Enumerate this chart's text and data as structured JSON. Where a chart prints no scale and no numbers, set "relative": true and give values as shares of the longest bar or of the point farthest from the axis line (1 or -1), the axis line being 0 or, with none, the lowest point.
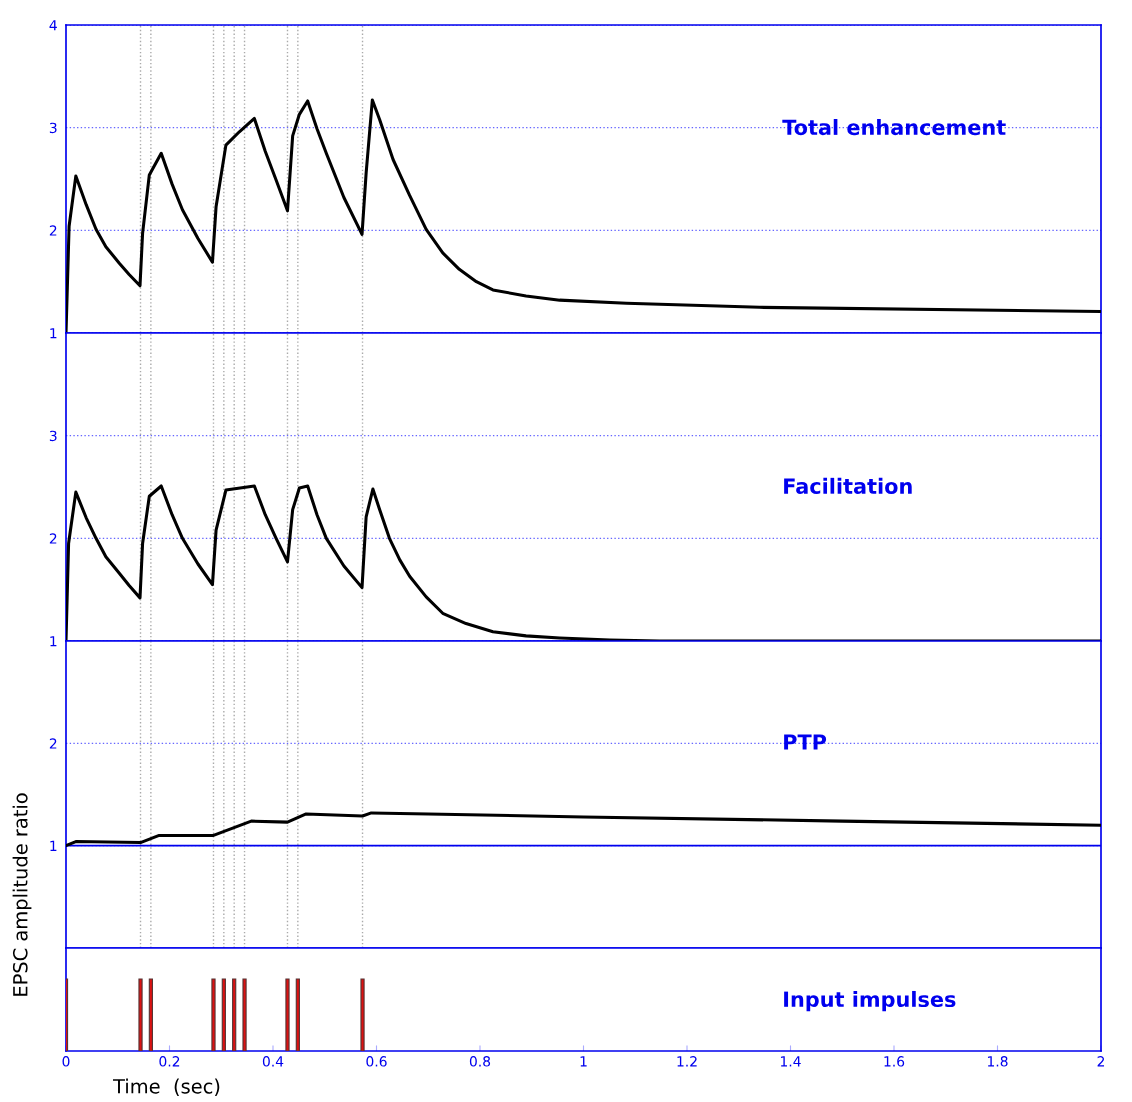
{
  "chart_data": [
    {
      "type": "line",
      "title": "Total enhancement",
      "xlim": [
        0,
        2
      ],
      "ylim": [
        1,
        4
      ],
      "yticks": [
        1,
        2,
        3,
        4
      ],
      "tick_labels": "y",
      "grid": "y",
      "marker": "none",
      "line_style": "solid",
      "series": [
        {
          "color": "#000000",
          "x": [
            0,
            0.006,
            0.019,
            0.039,
            0.058,
            0.077,
            0.103,
            0.122,
            0.143,
            0.148,
            0.161,
            0.184,
            0.205,
            0.225,
            0.255,
            0.283,
            0.29,
            0.309,
            0.335,
            0.364,
            0.385,
            0.406,
            0.428,
            0.438,
            0.451,
            0.467,
            0.485,
            0.503,
            0.537,
            0.572,
            0.58,
            0.592,
            0.606,
            0.632,
            0.664,
            0.696,
            0.728,
            0.76,
            0.793,
            0.825,
            0.889,
            0.954,
            1.083,
            1.34,
            2.0
          ],
          "values": [
            1.0,
            2.04,
            2.53,
            2.25,
            2.01,
            1.84,
            1.68,
            1.57,
            1.46,
            1.97,
            2.54,
            2.75,
            2.45,
            2.2,
            1.92,
            1.69,
            2.23,
            2.83,
            2.96,
            3.09,
            2.77,
            2.49,
            2.19,
            2.92,
            3.13,
            3.26,
            2.99,
            2.75,
            2.32,
            1.96,
            2.56,
            3.27,
            3.08,
            2.69,
            2.34,
            2.01,
            1.78,
            1.62,
            1.5,
            1.42,
            1.36,
            1.32,
            1.29,
            1.25,
            1.21
          ]
        }
      ],
      "ref_lines": [
        {
          "axis": "x",
          "value": 0.144,
          "color": "#aaaaaa",
          "line_style": "dotted"
        },
        {
          "axis": "x",
          "value": 0.164,
          "color": "#aaaaaa",
          "line_style": "dotted"
        },
        {
          "axis": "x",
          "value": 0.285,
          "color": "#aaaaaa",
          "line_style": "dotted"
        },
        {
          "axis": "x",
          "value": 0.305,
          "color": "#aaaaaa",
          "line_style": "dotted"
        },
        {
          "axis": "x",
          "value": 0.325,
          "color": "#aaaaaa",
          "line_style": "dotted"
        },
        {
          "axis": "x",
          "value": 0.345,
          "color": "#aaaaaa",
          "line_style": "dotted"
        },
        {
          "axis": "x",
          "value": 0.428,
          "color": "#aaaaaa",
          "line_style": "dotted"
        },
        {
          "axis": "x",
          "value": 0.448,
          "color": "#aaaaaa",
          "line_style": "dotted"
        },
        {
          "axis": "x",
          "value": 0.573,
          "color": "#aaaaaa",
          "line_style": "dotted"
        }
      ]
    },
    {
      "type": "line",
      "title": "Facilitation",
      "xlim": [
        0,
        2
      ],
      "ylim": [
        1,
        4
      ],
      "yticks": [
        1,
        2,
        3
      ],
      "tick_labels": "y",
      "grid": "y",
      "marker": "none",
      "line_style": "solid",
      "series": [
        {
          "color": "#000000",
          "x": [
            0,
            0.005,
            0.019,
            0.039,
            0.058,
            0.077,
            0.103,
            0.122,
            0.143,
            0.148,
            0.161,
            0.184,
            0.205,
            0.225,
            0.255,
            0.283,
            0.29,
            0.309,
            0.364,
            0.385,
            0.406,
            0.428,
            0.438,
            0.451,
            0.467,
            0.485,
            0.503,
            0.537,
            0.572,
            0.58,
            0.593,
            0.606,
            0.625,
            0.645,
            0.664,
            0.696,
            0.728,
            0.773,
            0.825,
            0.889,
            0.954,
            1.051,
            1.147,
            2.0
          ],
          "values": [
            1.0,
            1.95,
            2.45,
            2.2,
            2.0,
            1.82,
            1.66,
            1.54,
            1.42,
            1.95,
            2.41,
            2.51,
            2.23,
            2.0,
            1.75,
            1.55,
            2.08,
            2.47,
            2.51,
            2.23,
            2.0,
            1.77,
            2.28,
            2.49,
            2.51,
            2.23,
            2.0,
            1.73,
            1.52,
            2.21,
            2.48,
            2.28,
            2.0,
            1.79,
            1.63,
            1.43,
            1.27,
            1.17,
            1.09,
            1.05,
            1.03,
            1.01,
            1.0,
            1.0
          ]
        }
      ],
      "ref_lines": [
        {
          "axis": "x",
          "value": 0.144,
          "color": "#aaaaaa",
          "line_style": "dotted"
        },
        {
          "axis": "x",
          "value": 0.164,
          "color": "#aaaaaa",
          "line_style": "dotted"
        },
        {
          "axis": "x",
          "value": 0.285,
          "color": "#aaaaaa",
          "line_style": "dotted"
        },
        {
          "axis": "x",
          "value": 0.305,
          "color": "#aaaaaa",
          "line_style": "dotted"
        },
        {
          "axis": "x",
          "value": 0.325,
          "color": "#aaaaaa",
          "line_style": "dotted"
        },
        {
          "axis": "x",
          "value": 0.345,
          "color": "#aaaaaa",
          "line_style": "dotted"
        },
        {
          "axis": "x",
          "value": 0.428,
          "color": "#aaaaaa",
          "line_style": "dotted"
        },
        {
          "axis": "x",
          "value": 0.448,
          "color": "#aaaaaa",
          "line_style": "dotted"
        },
        {
          "axis": "x",
          "value": 0.573,
          "color": "#aaaaaa",
          "line_style": "dotted"
        }
      ]
    },
    {
      "type": "line",
      "title": "PTP",
      "ylabel": "EPSC amplitude ratio",
      "xlim": [
        0,
        2
      ],
      "ylim": [
        0,
        3
      ],
      "yticks": [
        1,
        2
      ],
      "tick_labels": "y",
      "grid": "y",
      "marker": "none",
      "line_style": "solid",
      "series": [
        {
          "color": "#000000",
          "x": [
            0,
            0.019,
            0.144,
            0.18,
            0.285,
            0.358,
            0.428,
            0.464,
            0.573,
            0.59,
            0.7,
            1.0,
            1.5,
            2.0
          ],
          "values": [
            1.0,
            1.04,
            1.03,
            1.1,
            1.1,
            1.24,
            1.23,
            1.31,
            1.29,
            1.32,
            1.31,
            1.28,
            1.24,
            1.2
          ]
        }
      ],
      "ref_lines": [
        {
          "axis": "y",
          "value": 1,
          "color": "#0000ee",
          "line_style": "solid"
        },
        {
          "axis": "x",
          "value": 0.144,
          "color": "#aaaaaa",
          "line_style": "dotted"
        },
        {
          "axis": "x",
          "value": 0.164,
          "color": "#aaaaaa",
          "line_style": "dotted"
        },
        {
          "axis": "x",
          "value": 0.285,
          "color": "#aaaaaa",
          "line_style": "dotted"
        },
        {
          "axis": "x",
          "value": 0.305,
          "color": "#aaaaaa",
          "line_style": "dotted"
        },
        {
          "axis": "x",
          "value": 0.325,
          "color": "#aaaaaa",
          "line_style": "dotted"
        },
        {
          "axis": "x",
          "value": 0.345,
          "color": "#aaaaaa",
          "line_style": "dotted"
        },
        {
          "axis": "x",
          "value": 0.428,
          "color": "#aaaaaa",
          "line_style": "dotted"
        },
        {
          "axis": "x",
          "value": 0.448,
          "color": "#aaaaaa",
          "line_style": "dotted"
        },
        {
          "axis": "x",
          "value": 0.573,
          "color": "#aaaaaa",
          "line_style": "dotted"
        }
      ]
    },
    {
      "type": "bar",
      "title": "Input impulses",
      "xlabel": "Time  (sec)",
      "relative": true,
      "xlim": [
        0,
        2
      ],
      "xticks": [
        0,
        0.2,
        0.4,
        0.6,
        0.8,
        1,
        1.2,
        1.4,
        1.6,
        1.8,
        2
      ],
      "tick_labels": "x",
      "x": [
        0,
        0.144,
        0.164,
        0.285,
        0.305,
        0.325,
        0.345,
        0.428,
        0.448,
        0.573
      ],
      "values": [
        1,
        1,
        1,
        1,
        1,
        1,
        1,
        1,
        1,
        1
      ],
      "color": "#dd1111"
    }
  ]
}
